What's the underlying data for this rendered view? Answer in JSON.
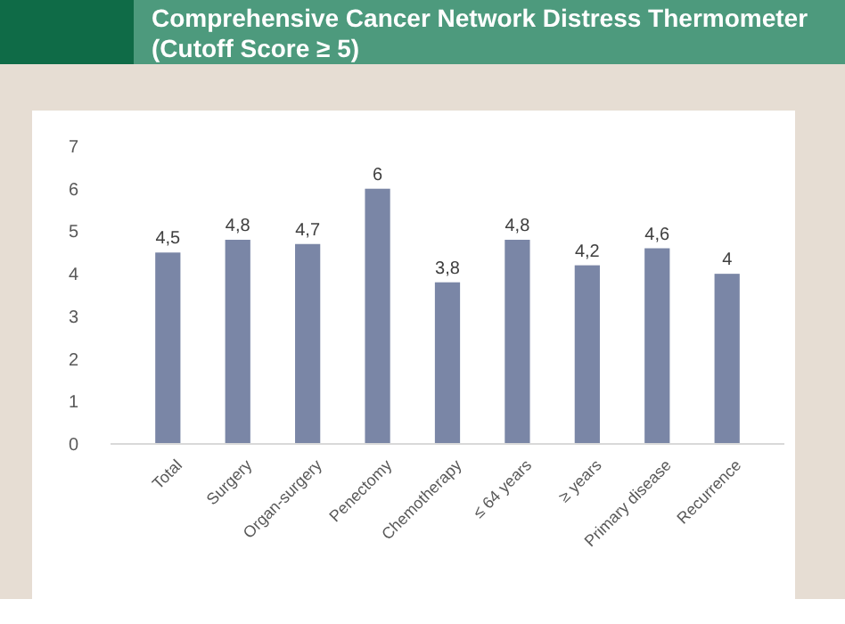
{
  "chart_data": {
    "type": "bar",
    "title": "Comprehensive Cancer Network Distress Thermometer (Cutoff Score ≥ 5)",
    "categories": [
      "Total",
      "Surgery",
      "Organ-surgery",
      "Penectomy",
      "Chemotherapy",
      "≤ 64 years",
      "≥ years",
      "Primary disease",
      "Recurrence"
    ],
    "values": [
      4.5,
      4.8,
      4.7,
      6,
      3.8,
      4.8,
      4.2,
      4.6,
      4
    ],
    "value_labels": [
      "4,5",
      "4,8",
      "4,7",
      "6",
      "3,8",
      "4,8",
      "4,2",
      "4,6",
      "4"
    ],
    "color": "#7a86a6",
    "ylim": [
      0,
      7
    ],
    "yticks": [
      0,
      1,
      2,
      3,
      4,
      5,
      6,
      7
    ]
  }
}
